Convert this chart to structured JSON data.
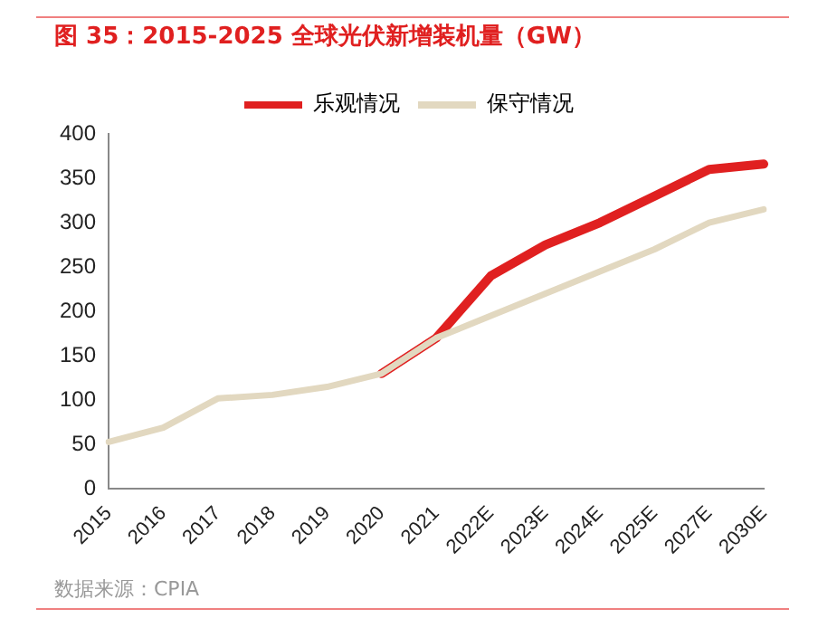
{
  "chart_data": {
    "type": "line",
    "title": "图 35：2015-2025 全球光伏新增装机量（GW）",
    "categories": [
      "2015",
      "2016",
      "2017",
      "2018",
      "2019",
      "2020",
      "2021",
      "2022E",
      "2023E",
      "2024E",
      "2025E",
      "2027E",
      "2030E"
    ],
    "series": [
      {
        "name": "乐观情况",
        "color": "#e02020",
        "values": [
          null,
          null,
          null,
          null,
          null,
          130,
          170,
          240,
          275,
          300,
          330,
          360,
          366
        ]
      },
      {
        "name": "保守情况",
        "color": "#e2d8c0",
        "values": [
          53,
          69,
          102,
          106,
          115,
          130,
          170,
          195,
          220,
          245,
          270,
          300,
          315
        ]
      }
    ],
    "ylim": [
      0,
      400
    ],
    "yticks": [
      0,
      50,
      100,
      150,
      200,
      250,
      300,
      350,
      400
    ],
    "grid": false,
    "legend": "top",
    "marker": "none",
    "line_style": "solid",
    "annotations": [
      "数据来源：CPIA"
    ]
  }
}
